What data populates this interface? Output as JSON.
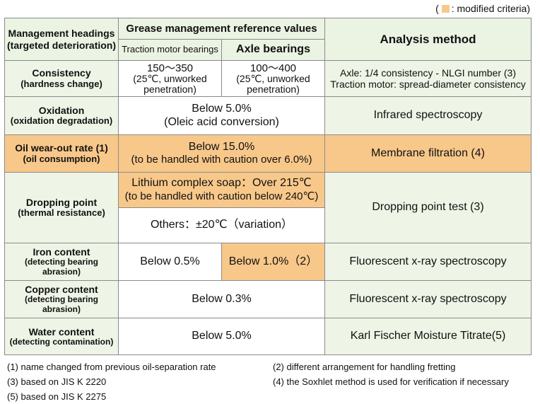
{
  "legend": {
    "open": "(",
    "text": ": modified criteria)"
  },
  "header": {
    "col1": [
      "Management headings",
      "(targeted deterioration)"
    ],
    "ref_group": "Grease management reference values",
    "traction": "Traction motor bearings",
    "axle": "Axle bearings",
    "analysis": "Analysis method"
  },
  "rows": {
    "consistency": {
      "head": "Consistency",
      "sub": "(hardness change)",
      "traction": [
        "150～350",
        "(25℃, unworked",
        "penetration)"
      ],
      "axle": [
        "100～400",
        "(25℃, unworked",
        "penetration)"
      ],
      "analysis": [
        "Axle: 1/4 consistency - NLGI number (3)",
        "Traction motor: spread-diameter consistency"
      ]
    },
    "oxidation": {
      "head": "Oxidation",
      "sub": "(oxidation degradation)",
      "value": [
        "Below 5.0%",
        "(Oleic acid conversion)"
      ],
      "analysis": "Infrared spectroscopy"
    },
    "oil_wear": {
      "head": "Oil wear-out rate (1)",
      "sub": "(oil consumption)",
      "value": [
        "Below 15.0%",
        "(to be handled with caution over 6.0%)"
      ],
      "analysis": "Membrane filtration (4)"
    },
    "dropping": {
      "head": "Dropping point",
      "sub": "(thermal resistance)",
      "value1": [
        "Lithium complex soap：Over 215℃",
        "(to be handled with caution below 240℃)"
      ],
      "value2": "Others：±20℃（variation）",
      "analysis": "Dropping point test (3)"
    },
    "iron": {
      "head": "Iron content",
      "sub": "(detecting bearing abrasion)",
      "traction": "Below 0.5%",
      "axle": "Below 1.0%（2）",
      "analysis": "Fluorescent x-ray spectroscopy"
    },
    "copper": {
      "head": "Copper content",
      "sub": "(detecting bearing abrasion)",
      "value": "Below 0.3%",
      "analysis": "Fluorescent x-ray spectroscopy"
    },
    "water": {
      "head": "Water content",
      "sub": "(detecting contamination)",
      "value": "Below 5.0%",
      "analysis": "Karl Fischer Moisture Titrate(5)"
    }
  },
  "notes": [
    [
      "(1) name changed from previous oil-separation rate",
      "(2) different arrangement for handling fretting"
    ],
    [
      "(3) based on JIS K 2220",
      "(4) the Soxhlet method is used for verification if necessary"
    ],
    [
      "(5) based on JIS K 2275",
      ""
    ]
  ],
  "colors": {
    "modified": "#f8c88a",
    "header_bg": "#ebf3e3",
    "border": "#8a8a8a"
  }
}
